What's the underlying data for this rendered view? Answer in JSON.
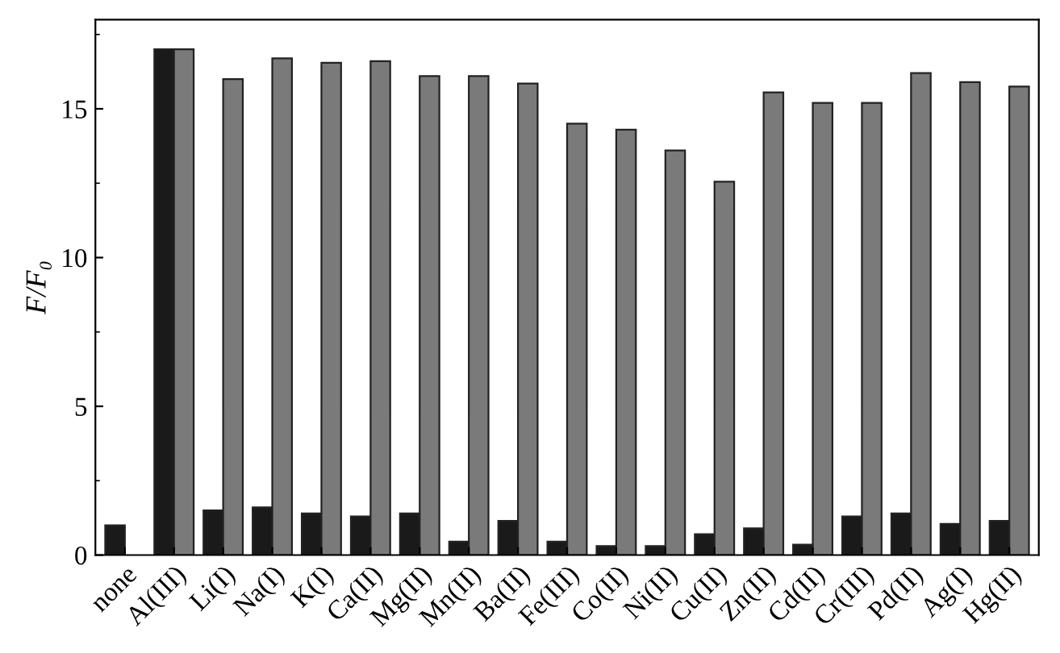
{
  "chart_data": {
    "type": "bar",
    "ylabel": "F/F₀",
    "categories": [
      "none",
      "Al(III)",
      "Li(I)",
      "Na(I)",
      "K(I)",
      "Ca(II)",
      "Mg(II)",
      "Mn(II)",
      "Ba(II)",
      "Fe(III)",
      "Co(II)",
      "Ni(II)",
      "Cu(II)",
      "Zn(II)",
      "Cd(II)",
      "Cr(III)",
      "Pd(II)",
      "Ag(I)",
      "Hg(II)"
    ],
    "series": [
      {
        "color": "#1a1a1a",
        "values": [
          1.0,
          17.0,
          1.5,
          1.6,
          1.4,
          1.3,
          1.4,
          0.45,
          1.15,
          0.45,
          0.3,
          0.3,
          0.7,
          0.9,
          0.35,
          1.3,
          1.4,
          1.05,
          1.15
        ]
      },
      {
        "color": "#7a7a7a",
        "values": [
          null,
          17.0,
          16.0,
          16.7,
          16.55,
          16.6,
          16.1,
          16.1,
          15.85,
          14.5,
          14.3,
          13.6,
          12.55,
          15.55,
          15.2,
          15.2,
          16.2,
          15.9,
          15.75
        ]
      }
    ],
    "ylim": [
      0,
      18
    ],
    "yticks": [
      0,
      5,
      10,
      15
    ],
    "grid": false,
    "legend": false
  }
}
